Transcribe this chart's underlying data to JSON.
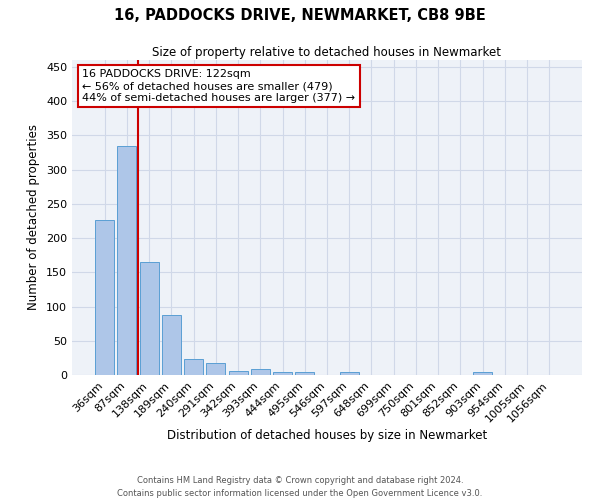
{
  "title": "16, PADDOCKS DRIVE, NEWMARKET, CB8 9BE",
  "subtitle": "Size of property relative to detached houses in Newmarket",
  "xlabel": "Distribution of detached houses by size in Newmarket",
  "ylabel": "Number of detached properties",
  "bin_labels": [
    "36sqm",
    "87sqm",
    "138sqm",
    "189sqm",
    "240sqm",
    "291sqm",
    "342sqm",
    "393sqm",
    "444sqm",
    "495sqm",
    "546sqm",
    "597sqm",
    "648sqm",
    "699sqm",
    "750sqm",
    "801sqm",
    "852sqm",
    "903sqm",
    "954sqm",
    "1005sqm",
    "1056sqm"
  ],
  "bar_values": [
    227,
    335,
    165,
    87,
    24,
    18,
    6,
    9,
    5,
    5,
    0,
    4,
    0,
    0,
    0,
    0,
    0,
    4,
    0,
    0,
    0
  ],
  "bar_color": "#aec6e8",
  "bar_edgecolor": "#5a9fd4",
  "grid_color": "#d0d8e8",
  "background_color": "#eef2f8",
  "vline_x": 1.5,
  "vline_color": "#cc0000",
  "annotation_text": "16 PADDOCKS DRIVE: 122sqm\n← 56% of detached houses are smaller (479)\n44% of semi-detached houses are larger (377) →",
  "annotation_box_edgecolor": "#cc0000",
  "footer": "Contains HM Land Registry data © Crown copyright and database right 2024.\nContains public sector information licensed under the Open Government Licence v3.0.",
  "ylim": [
    0,
    460
  ],
  "yticks": [
    0,
    50,
    100,
    150,
    200,
    250,
    300,
    350,
    400,
    450
  ]
}
